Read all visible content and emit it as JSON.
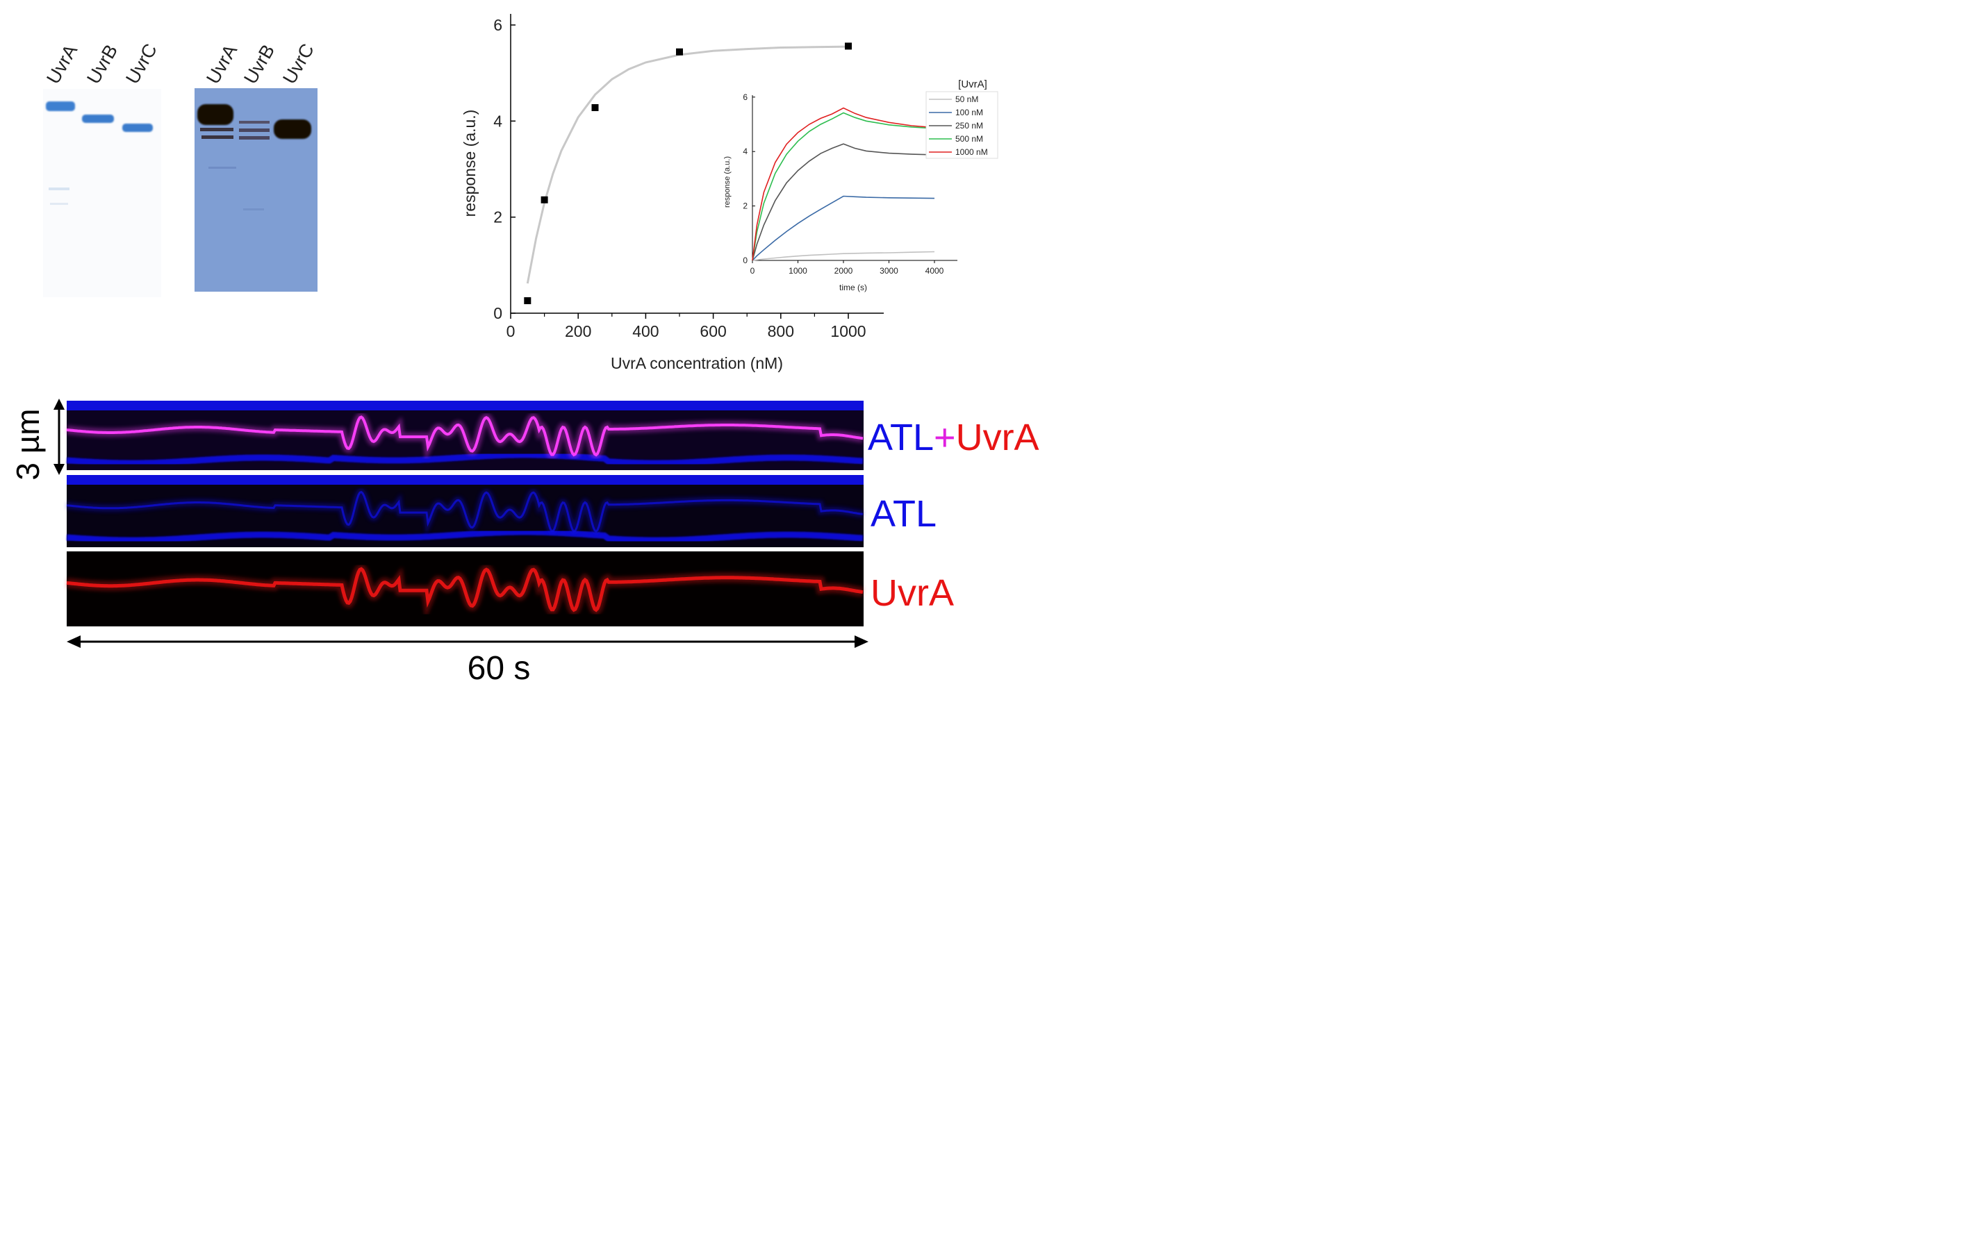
{
  "gels": {
    "left_lanes": [
      "UvrA",
      "UvrB",
      "UvrC"
    ],
    "right_lanes": [
      "UvrA",
      "UvrB",
      "UvrC"
    ]
  },
  "chart_data": [
    {
      "type": "scatter",
      "title": "",
      "xlabel": "UvrA concentration (nM)",
      "ylabel": "response (a.u.)",
      "xlim": [
        0,
        1100
      ],
      "ylim": [
        0,
        6.2
      ],
      "x_ticks": [
        0,
        200,
        400,
        600,
        800,
        1000
      ],
      "y_ticks": [
        0,
        2,
        4,
        6
      ],
      "grid": false,
      "series": [
        {
          "kind": "points",
          "x": [
            50,
            100,
            250,
            500,
            1000
          ],
          "y": [
            0.26,
            2.36,
            4.28,
            5.44,
            5.56
          ],
          "color": "#000000"
        },
        {
          "kind": "fit-line",
          "x": [
            50,
            75,
            100,
            125,
            150,
            200,
            250,
            300,
            350,
            400,
            500,
            600,
            700,
            800,
            900,
            1000
          ],
          "y": [
            0.62,
            1.55,
            2.3,
            2.9,
            3.38,
            4.08,
            4.55,
            4.87,
            5.08,
            5.22,
            5.38,
            5.46,
            5.5,
            5.53,
            5.54,
            5.55
          ],
          "color": "#c8c8c8"
        }
      ]
    },
    {
      "type": "line",
      "title": "",
      "xlabel": "time (s)",
      "ylabel": "response (a.u.)",
      "xlim": [
        0,
        4400
      ],
      "ylim": [
        0,
        6
      ],
      "x_ticks": [
        0,
        1000,
        2000,
        3000,
        4000
      ],
      "y_ticks": [
        0,
        2,
        4,
        6
      ],
      "legend_title": "[UvrA]",
      "legend_position": "top-right",
      "x": [
        0,
        100,
        250,
        500,
        750,
        1000,
        1250,
        1500,
        1750,
        2000,
        2250,
        2500,
        3000,
        3500,
        4000
      ],
      "series": [
        {
          "name": "50 nM",
          "color": "#c0c0c0",
          "values": [
            0,
            0.02,
            0.05,
            0.09,
            0.13,
            0.16,
            0.19,
            0.21,
            0.23,
            0.25,
            0.26,
            0.27,
            0.28,
            0.3,
            0.32
          ]
        },
        {
          "name": "100 nM",
          "color": "#3a6aa6",
          "values": [
            0,
            0.17,
            0.39,
            0.74,
            1.06,
            1.36,
            1.63,
            1.88,
            2.12,
            2.36,
            2.34,
            2.32,
            2.3,
            2.29,
            2.28
          ]
        },
        {
          "name": "250 nM",
          "color": "#555555",
          "values": [
            0,
            0.6,
            1.3,
            2.2,
            2.85,
            3.3,
            3.65,
            3.93,
            4.12,
            4.28,
            4.12,
            4.02,
            3.94,
            3.9,
            3.88
          ]
        },
        {
          "name": "500 nM",
          "color": "#2dbd4f",
          "values": [
            0,
            1.05,
            2.1,
            3.2,
            3.9,
            4.38,
            4.74,
            5.0,
            5.2,
            5.42,
            5.25,
            5.12,
            4.98,
            4.9,
            4.85
          ]
        },
        {
          "name": "1000 nM",
          "color": "#e02020",
          "values": [
            0,
            1.3,
            2.5,
            3.6,
            4.27,
            4.7,
            5.0,
            5.22,
            5.38,
            5.6,
            5.4,
            5.25,
            5.07,
            4.95,
            4.88
          ]
        }
      ]
    }
  ],
  "kymograph": {
    "scale_y": "3 µm",
    "scale_x": "60 s",
    "label_top": {
      "a": "ATL",
      "plus": "+",
      "b": "UvrA"
    },
    "label_mid": "ATL",
    "label_bot": "UvrA",
    "colors": {
      "atl": "#1010e6",
      "plus": "#e020e0",
      "uvra": "#e81414",
      "merged_trace": "#ff40ff"
    }
  }
}
